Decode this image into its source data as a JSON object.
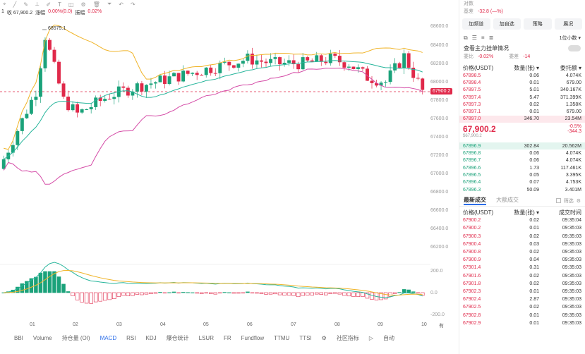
{
  "toolbar": {
    "sub": {
      "k": "1",
      "close": "收 67,900.2",
      "change_label": "涨幅",
      "change": "0.00%(0.0)",
      "amp_label": "振幅",
      "amp": "0.02%"
    }
  },
  "chart": {
    "high_label": "68575.1",
    "current_price": "67900.2",
    "y_ticks": [
      "68600.0",
      "68400.0",
      "68200.0",
      "68000.0",
      "67800.0",
      "67600.0",
      "67400.0",
      "67200.0",
      "67000.0",
      "66800.0",
      "66600.0",
      "66400.0",
      "66200.0"
    ],
    "macd_ticks": [
      "200.0",
      "0.0",
      "-200.0"
    ],
    "x_ticks": [
      "01",
      "02",
      "03",
      "04",
      "05",
      "06",
      "07",
      "08",
      "09",
      "10"
    ],
    "x_more": "有",
    "left_label": "BBI"
  },
  "indicators": {
    "items": [
      "Volume",
      "持仓量 (OI)",
      "MACD",
      "RSI",
      "KDJ",
      "爆仓统计",
      "LSUR",
      "FR",
      "Fundflow",
      "TTMU",
      "TTSI"
    ],
    "active": "MACD",
    "community_label": "社区指标",
    "scroll_right": "▷",
    "auto_label": "自动"
  },
  "right": {
    "top": {
      "basis_label": "基差",
      "basis_value": "-32.8 (—%)",
      "contract_label": "对数"
    },
    "buttons": [
      "加频道",
      "加自选",
      "策略",
      "展况"
    ],
    "ob_controls": {
      "precision": "1位小数"
    },
    "main_force": {
      "label": "查看主力挂单情况"
    },
    "ratios": {
      "left_label": "委比",
      "left_value": "-0.02%",
      "right_label": "委差",
      "right_value": "-14"
    },
    "ob_headers": [
      "价格(USDT)",
      "数量(张)",
      "委托额"
    ],
    "asks": [
      {
        "p": "67898.5",
        "q": "0.06",
        "t": "4.074K"
      },
      {
        "p": "67898.4",
        "q": "0.01",
        "t": "679.00"
      },
      {
        "p": "67897.5",
        "q": "5.01",
        "t": "340.167K"
      },
      {
        "p": "67897.4",
        "q": "5.47",
        "t": "371.399K"
      },
      {
        "p": "67897.3",
        "q": "0.02",
        "t": "1.358K"
      },
      {
        "p": "67897.1",
        "q": "0.01",
        "t": "679.00"
      },
      {
        "p": "67897.0",
        "q": "346.70",
        "t": "23.54M"
      }
    ],
    "last": {
      "price": "67,900.2",
      "mark": "$67,900.2",
      "pct": "-0.5%",
      "diff": "-344.3"
    },
    "bids": [
      {
        "p": "67896.9",
        "q": "302.84",
        "t": "20.562M"
      },
      {
        "p": "67896.8",
        "q": "0.06",
        "t": "4.074K"
      },
      {
        "p": "67896.7",
        "q": "0.06",
        "t": "4.074K"
      },
      {
        "p": "67896.6",
        "q": "1.73",
        "t": "117.461K"
      },
      {
        "p": "67896.5",
        "q": "0.05",
        "t": "3.395K"
      },
      {
        "p": "67896.4",
        "q": "0.07",
        "t": "4.753K"
      },
      {
        "p": "67896.3",
        "q": "50.09",
        "t": "3.401M"
      }
    ],
    "trade_tabs": [
      "最新成交",
      "大额成交"
    ],
    "trade_filter": "筛选",
    "trade_headers": [
      "价格(USDT)",
      "数量(张)",
      "成交时间"
    ],
    "trades": [
      {
        "p": "67900.2",
        "q": "0.02",
        "t": "09:35:04"
      },
      {
        "p": "67900.2",
        "q": "0.01",
        "t": "09:35:03"
      },
      {
        "p": "67900.3",
        "q": "0.02",
        "t": "09:35:03"
      },
      {
        "p": "67900.4",
        "q": "0.03",
        "t": "09:35:03"
      },
      {
        "p": "67900.8",
        "q": "0.02",
        "t": "09:35:03"
      },
      {
        "p": "67900.9",
        "q": "0.04",
        "t": "09:35:03"
      },
      {
        "p": "67901.4",
        "q": "0.31",
        "t": "09:35:03"
      },
      {
        "p": "67901.6",
        "q": "0.02",
        "t": "09:35:03"
      },
      {
        "p": "67901.8",
        "q": "0.02",
        "t": "09:35:03"
      },
      {
        "p": "67902.3",
        "q": "0.01",
        "t": "09:35:03"
      },
      {
        "p": "67902.4",
        "q": "2.87",
        "t": "09:35:03"
      },
      {
        "p": "67902.5",
        "q": "0.02",
        "t": "09:35:03"
      },
      {
        "p": "67902.8",
        "q": "0.01",
        "t": "09:35:03"
      },
      {
        "p": "67902.9",
        "q": "0.01",
        "t": "09:35:03"
      }
    ]
  },
  "colors": {
    "up": "#1ba27a",
    "down": "#e0294a",
    "accent": "#2b6de8"
  }
}
